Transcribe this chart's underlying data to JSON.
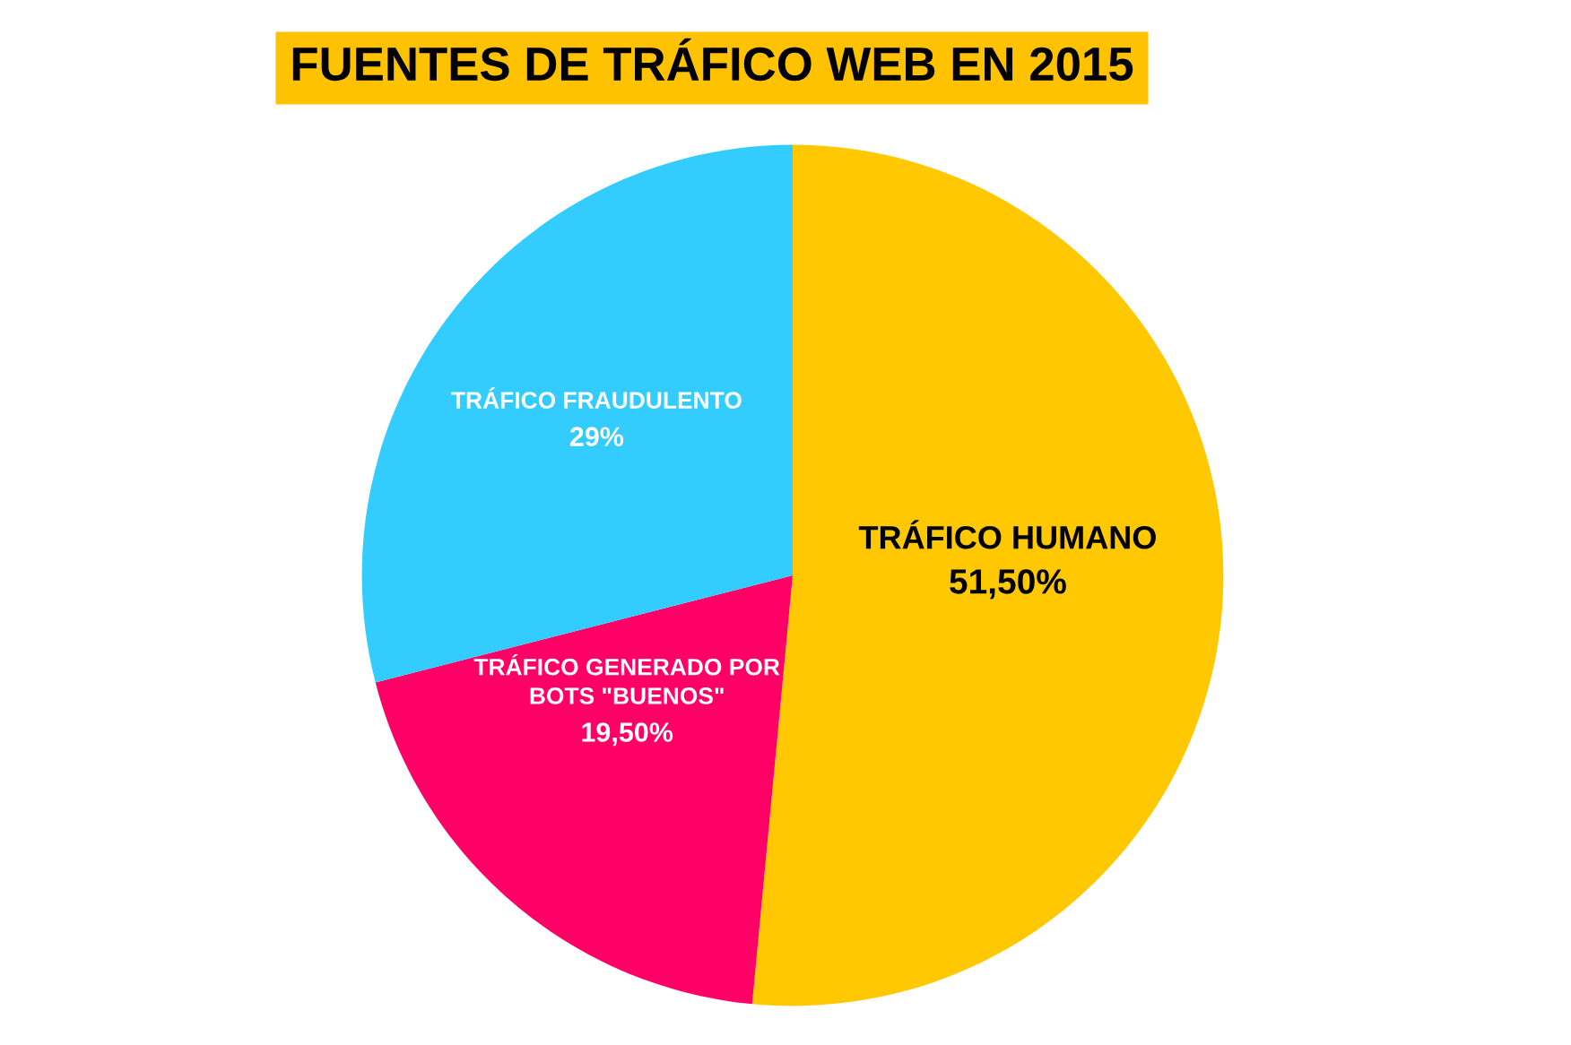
{
  "chart_data": {
    "type": "pie",
    "title": "FUENTES DE TRÁFICO WEB EN 2015",
    "categories": [
      "TRÁFICO HUMANO",
      "TRÁFICO GENERADO POR\nBOTS \"BUENOS\"",
      "TRÁFICO FRAUDULENTO"
    ],
    "values": [
      51.5,
      19.5,
      29
    ],
    "colors": [
      "#ffc800",
      "#ff0066",
      "#33ccff"
    ],
    "value_labels": [
      "51,50%",
      "19,50%",
      "29%"
    ]
  }
}
